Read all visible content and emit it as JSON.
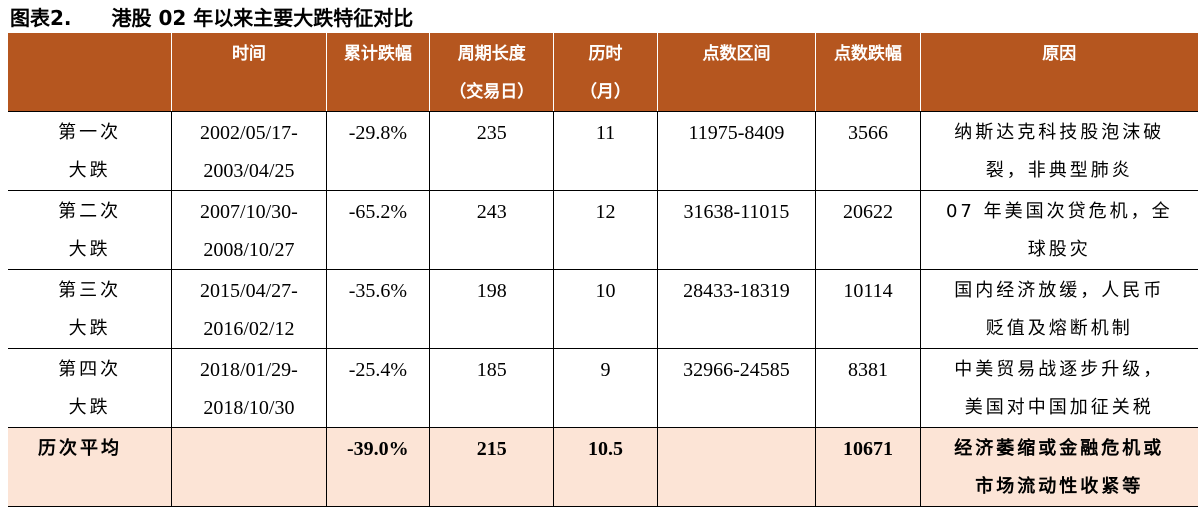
{
  "header": {
    "label": "图表2.",
    "title": "港股 02 年以来主要大跌特征对比"
  },
  "table": {
    "columns": [
      [],
      [
        "时间"
      ],
      [
        "累计跌幅"
      ],
      [
        "周期长度",
        "（交易日）"
      ],
      [
        "历时",
        "（月）"
      ],
      [
        "点数区间"
      ],
      [
        "点数跌幅"
      ],
      [
        "原因"
      ]
    ],
    "rows": [
      [
        [
          "第一次",
          "大跌"
        ],
        [
          "2002/05/17-",
          "2003/04/25"
        ],
        [
          "-29.8%"
        ],
        [
          "235"
        ],
        [
          "11"
        ],
        [
          "11975-8409"
        ],
        [
          "3566"
        ],
        [
          "纳斯达克科技股泡沫破",
          "裂，非典型肺炎"
        ]
      ],
      [
        [
          "第二次",
          "大跌"
        ],
        [
          "2007/10/30-",
          "2008/10/27"
        ],
        [
          "-65.2%"
        ],
        [
          "243"
        ],
        [
          "12"
        ],
        [
          "31638-11015"
        ],
        [
          "20622"
        ],
        [
          "07 年美国次贷危机，全",
          "球股灾"
        ]
      ],
      [
        [
          "第三次",
          "大跌"
        ],
        [
          "2015/04/27-",
          "2016/02/12"
        ],
        [
          "-35.6%"
        ],
        [
          "198"
        ],
        [
          "10"
        ],
        [
          "28433-18319"
        ],
        [
          "10114"
        ],
        [
          "国内经济放缓，人民币",
          "贬值及熔断机制"
        ]
      ],
      [
        [
          "第四次",
          "大跌"
        ],
        [
          "2018/01/29-",
          "2018/10/30"
        ],
        [
          "-25.4%"
        ],
        [
          "185"
        ],
        [
          "9"
        ],
        [
          "32966-24585"
        ],
        [
          "8381"
        ],
        [
          "中美贸易战逐步升级，",
          "美国对中国加征关税"
        ]
      ]
    ],
    "summary": [
      [
        "历次平均"
      ],
      [],
      [
        "-39.0%"
      ],
      [
        "215"
      ],
      [
        "10.5"
      ],
      [],
      [
        "10671"
      ],
      [
        "经济萎缩或金融危机或",
        "市场流动性收紧等"
      ]
    ]
  }
}
